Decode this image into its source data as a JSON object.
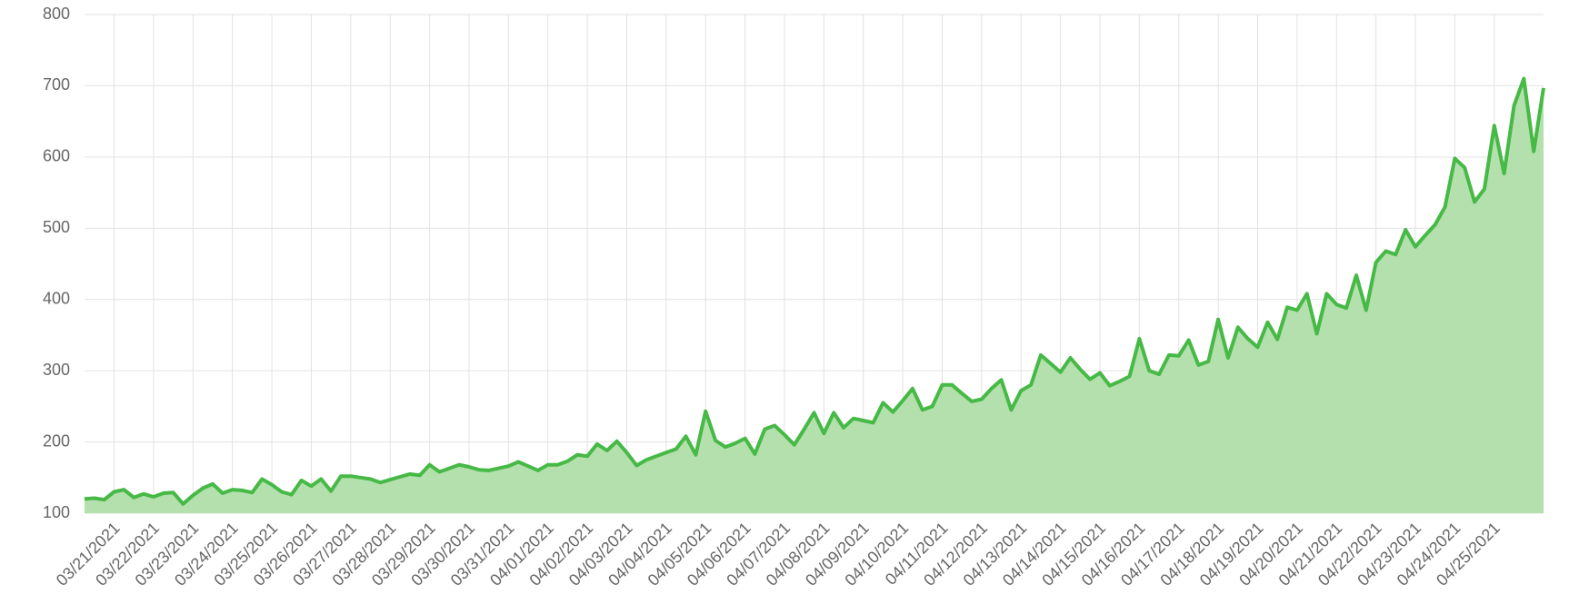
{
  "chart_data": {
    "type": "area",
    "categories": [
      null,
      null,
      null,
      "03/21/2021",
      null,
      null,
      null,
      "03/22/2021",
      null,
      null,
      null,
      "03/23/2021",
      null,
      null,
      null,
      "03/24/2021",
      null,
      null,
      null,
      "03/25/2021",
      null,
      null,
      null,
      "03/26/2021",
      null,
      null,
      null,
      "03/27/2021",
      null,
      null,
      null,
      "03/28/2021",
      null,
      null,
      null,
      "03/29/2021",
      null,
      null,
      null,
      "03/30/2021",
      null,
      null,
      null,
      "03/31/2021",
      null,
      null,
      null,
      "04/01/2021",
      null,
      null,
      null,
      "04/02/2021",
      null,
      null,
      null,
      "04/03/2021",
      null,
      null,
      null,
      "04/04/2021",
      null,
      null,
      null,
      "04/05/2021",
      null,
      null,
      null,
      "04/06/2021",
      null,
      null,
      null,
      "04/07/2021",
      null,
      null,
      null,
      "04/08/2021",
      null,
      null,
      null,
      "04/09/2021",
      null,
      null,
      null,
      "04/10/2021",
      null,
      null,
      null,
      "04/11/2021",
      null,
      null,
      null,
      "04/12/2021",
      null,
      null,
      null,
      "04/13/2021",
      null,
      null,
      null,
      "04/14/2021",
      null,
      null,
      null,
      "04/15/2021",
      null,
      null,
      null,
      "04/16/2021",
      null,
      null,
      null,
      "04/17/2021",
      null,
      null,
      null,
      "04/18/2021",
      null,
      null,
      null,
      "04/19/2021",
      null,
      null,
      null,
      "04/20/2021",
      null,
      null,
      null,
      "04/21/2021",
      null,
      null,
      null,
      "04/22/2021",
      null,
      null,
      null,
      "04/23/2021",
      null,
      null,
      null,
      "04/24/2021",
      null,
      null,
      null,
      "04/25/2021",
      null,
      null,
      null,
      null,
      null
    ],
    "values": [
      120,
      121,
      119,
      130,
      133,
      122,
      127,
      123,
      128,
      129,
      113,
      125,
      135,
      141,
      128,
      133,
      132,
      129,
      148,
      140,
      130,
      126,
      146,
      138,
      148,
      131,
      152,
      152,
      150,
      148,
      143,
      147,
      151,
      155,
      153,
      168,
      158,
      163,
      168,
      165,
      161,
      160,
      163,
      166,
      172,
      166,
      160,
      168,
      168,
      173,
      182,
      180,
      197,
      188,
      201,
      185,
      167,
      175,
      180,
      185,
      190,
      208,
      182,
      243,
      202,
      193,
      198,
      205,
      183,
      218,
      223,
      210,
      196,
      218,
      241,
      212,
      241,
      220,
      233,
      230,
      227,
      255,
      242,
      258,
      275,
      245,
      250,
      280,
      280,
      268,
      257,
      260,
      275,
      287,
      245,
      272,
      280,
      322,
      310,
      298,
      318,
      302,
      288,
      297,
      279,
      285,
      292,
      345,
      300,
      295,
      322,
      321,
      343,
      308,
      313,
      372,
      318,
      361,
      345,
      333,
      368,
      344,
      389,
      385,
      408,
      352,
      408,
      393,
      388,
      434,
      385,
      452,
      468,
      463,
      498,
      474,
      490,
      505,
      530,
      598,
      585,
      537,
      555,
      644,
      577,
      672,
      710,
      608,
      697
    ],
    "color": "#46b946",
    "fill": "#b3e0ac",
    "ylim": [
      100,
      800
    ],
    "yticks": [
      100,
      200,
      300,
      400,
      500,
      600,
      700,
      800
    ],
    "grid": true
  }
}
